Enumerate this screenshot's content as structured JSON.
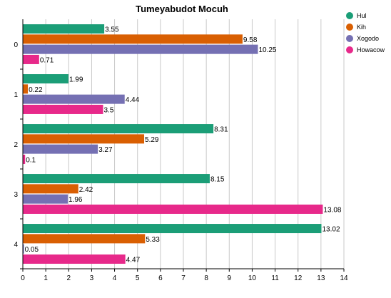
{
  "chart_data": {
    "type": "bar",
    "orientation": "horizontal",
    "title": "Tumeyabudot Mocuh",
    "categories": [
      "0",
      "1",
      "2",
      "3",
      "4"
    ],
    "series": [
      {
        "name": "Hul",
        "color": "#1b9e77",
        "values": [
          3.55,
          1.99,
          8.31,
          8.15,
          13.02
        ]
      },
      {
        "name": "Kih",
        "color": "#d95f02",
        "values": [
          9.58,
          0.22,
          5.29,
          2.42,
          5.33
        ]
      },
      {
        "name": "Xogodo",
        "color": "#7570b3",
        "values": [
          10.25,
          4.44,
          3.27,
          1.96,
          0.05
        ]
      },
      {
        "name": "Howacow",
        "color": "#e7298a",
        "values": [
          0.71,
          3.5,
          0.1,
          13.08,
          4.47
        ]
      }
    ],
    "data_labels": [
      [
        "3.55",
        "1.99",
        "8.31",
        "8.15",
        "13.02"
      ],
      [
        "9.58",
        "0.22",
        "5.29",
        "2.42",
        "5.33"
      ],
      [
        "10.25",
        "4.44",
        "3.27",
        "1.96",
        "0.05"
      ],
      [
        "0.71",
        "3.5",
        "0.1",
        "13.08",
        "4.47"
      ]
    ],
    "xlim": [
      0,
      14
    ],
    "x_ticks": [
      "0",
      "1",
      "2",
      "3",
      "4",
      "5",
      "6",
      "7",
      "8",
      "9",
      "10",
      "11",
      "12",
      "13",
      "14"
    ],
    "xlabel": "",
    "ylabel": "",
    "grid": true,
    "legend_position": "top-right"
  }
}
